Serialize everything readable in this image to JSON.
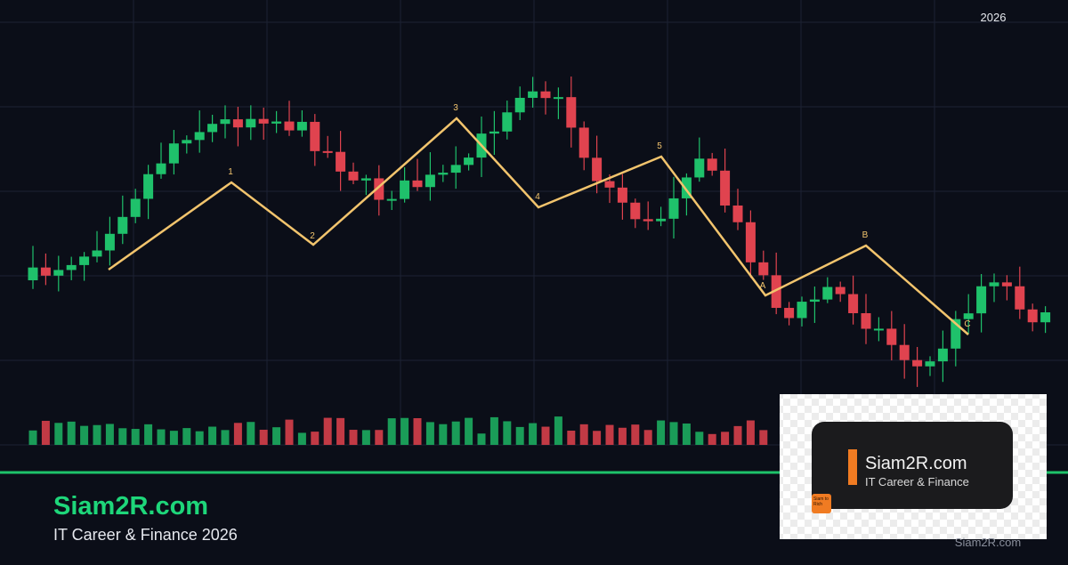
{
  "header": {
    "year": "2026"
  },
  "waves": {
    "labels": [
      "1",
      "2",
      "3",
      "4",
      "5",
      "A",
      "B",
      "C"
    ]
  },
  "brand": {
    "title": "Siam2R.com",
    "tagline": "IT Career & Finance 2026"
  },
  "logo": {
    "title": "Siam2R.com",
    "subtitle": "IT Career & Finance",
    "badge": "Siam to Rich"
  },
  "watermark": "Siam2R.com"
}
